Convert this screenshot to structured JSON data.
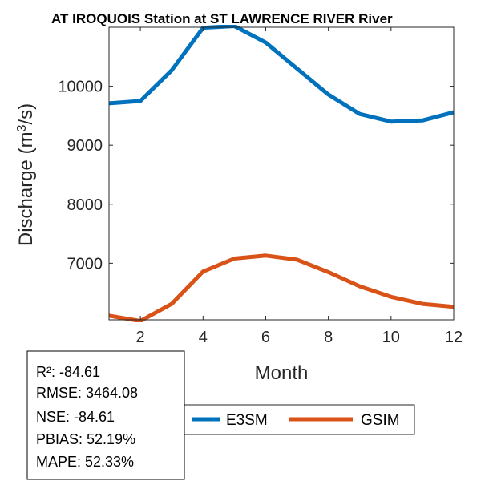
{
  "chart_data": {
    "type": "line",
    "title": "AT IROQUOIS  Station at  ST LAWRENCE RIVER  River",
    "xlabel": "Month",
    "ylabel_main": "Discharge (m",
    "ylabel_sup": "3",
    "ylabel_tail": "/s)",
    "xlim": [
      1,
      12
    ],
    "ylim": [
      6040,
      11000
    ],
    "xticks": [
      2,
      4,
      6,
      8,
      10,
      12
    ],
    "yticks": [
      7000,
      8000,
      9000,
      10000
    ],
    "x": [
      1,
      2,
      3,
      4,
      5,
      6,
      7,
      8,
      9,
      10,
      11,
      12
    ],
    "series": [
      {
        "name": "E3SM",
        "color": "#0072BD",
        "values": [
          9710,
          9750,
          10270,
          10990,
          11020,
          10740,
          10300,
          9860,
          9530,
          9400,
          9420,
          9560
        ]
      },
      {
        "name": "GSIM",
        "color": "#D95319",
        "values": [
          6110,
          6020,
          6310,
          6860,
          7080,
          7130,
          7060,
          6850,
          6610,
          6430,
          6310,
          6260
        ]
      }
    ],
    "legend_placement": "bottom"
  },
  "stats": [
    "R²: -84.61",
    "RMSE: 3464.08",
    "NSE: -84.61",
    "PBIAS: 52.19%",
    "MAPE: 52.33%"
  ]
}
